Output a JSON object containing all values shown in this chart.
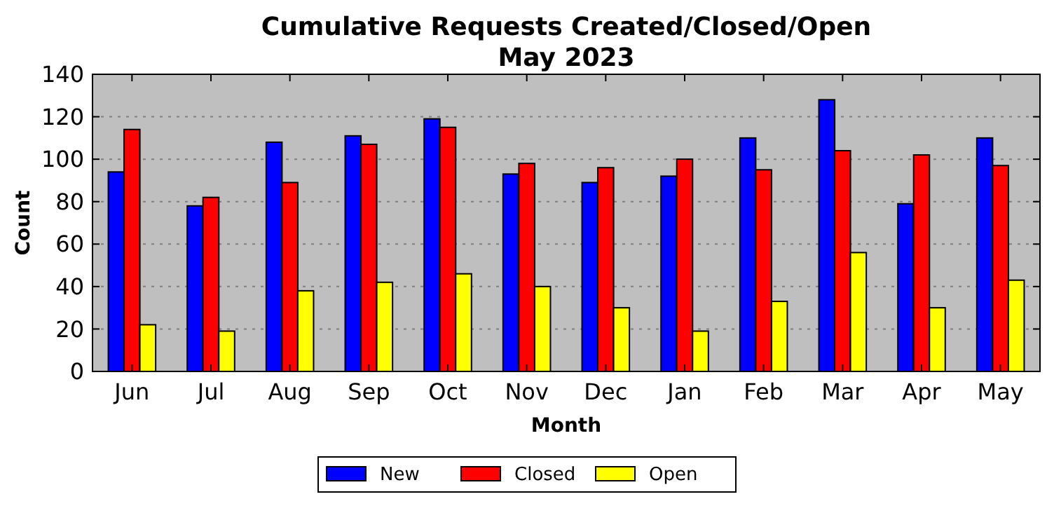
{
  "chart_data": {
    "type": "bar",
    "title": "Cumulative Requests Created/Closed/Open",
    "subtitle": "May 2023",
    "xlabel": "Month",
    "ylabel": "Count",
    "categories": [
      "Jun",
      "Jul",
      "Aug",
      "Sep",
      "Oct",
      "Nov",
      "Dec",
      "Jan",
      "Feb",
      "Mar",
      "Apr",
      "May"
    ],
    "series": [
      {
        "name": "New",
        "color": "#0000ff",
        "values": [
          94,
          78,
          108,
          111,
          119,
          93,
          89,
          92,
          110,
          128,
          79,
          110
        ]
      },
      {
        "name": "Closed",
        "color": "#ff0000",
        "values": [
          114,
          82,
          89,
          107,
          115,
          98,
          96,
          100,
          95,
          104,
          102,
          97
        ]
      },
      {
        "name": "Open",
        "color": "#ffff00",
        "values": [
          22,
          19,
          38,
          42,
          46,
          40,
          30,
          19,
          33,
          56,
          30,
          43
        ]
      }
    ],
    "ylim": [
      0,
      140
    ],
    "yticks": [
      0,
      20,
      40,
      60,
      80,
      100,
      120,
      140
    ],
    "grid": "y",
    "legend": "bottom"
  }
}
